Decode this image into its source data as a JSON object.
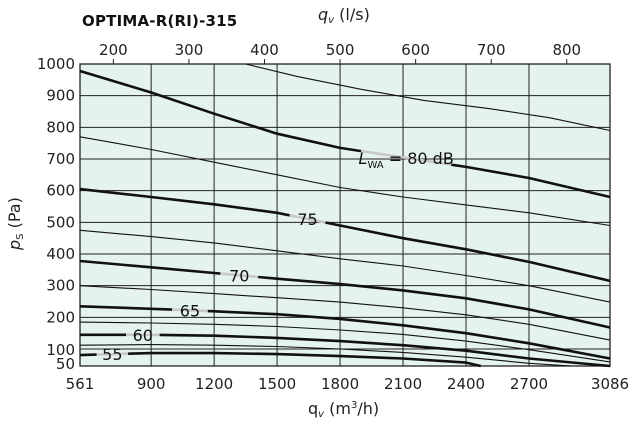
{
  "chart_data": {
    "type": "line",
    "title": "OPTIMA-R(RI)-315",
    "xlabel": "q_v (m³/h)",
    "x2label": "q_v (l/s)",
    "ylabel": "p_s (Pa)",
    "xlim": [
      561,
      3086
    ],
    "ylim": [
      50,
      1000
    ],
    "x_ticks": [
      "561",
      "900",
      "1200",
      "1500",
      "1800",
      "2100",
      "2400",
      "2700",
      "3086"
    ],
    "x_tick_values": [
      561,
      900,
      1200,
      1500,
      1800,
      2100,
      2400,
      2700,
      3086
    ],
    "x2_ticks": [
      "200",
      "300",
      "400",
      "500",
      "600",
      "700",
      "800"
    ],
    "x2_tick_values": [
      200,
      300,
      400,
      500,
      600,
      700,
      800
    ],
    "y_ticks": [
      "50",
      "100",
      "200",
      "300",
      "400",
      "500",
      "600",
      "700",
      "800",
      "900",
      "1000"
    ],
    "y_tick_values": [
      50,
      100,
      200,
      300,
      400,
      500,
      600,
      700,
      800,
      900,
      1000
    ],
    "grid": true,
    "legend": "none",
    "colors": {
      "plot_bg": "#e5f3ef",
      "grid": "#222222",
      "curve": "#111111",
      "label_gap": "#c8c8c8"
    },
    "series": [
      {
        "name": "80 dB",
        "label_prefix": "L",
        "label_sub": "WA",
        "label_eq": " = 80 dB",
        "bold": true,
        "x": [
          561,
          900,
          1200,
          1500,
          1800,
          2100,
          2400,
          2700,
          3086
        ],
        "y": [
          978,
          910,
          843,
          780,
          735,
          705,
          675,
          640,
          580
        ],
        "label_x": [
          1900,
          2330
        ]
      },
      {
        "name": "75",
        "bold": true,
        "x": [
          561,
          900,
          1200,
          1500,
          1800,
          2100,
          2400,
          2700,
          3086
        ],
        "y": [
          605,
          580,
          557,
          530,
          490,
          450,
          415,
          375,
          315
        ],
        "label_x": [
          1560,
          1730
        ]
      },
      {
        "name": "70",
        "bold": true,
        "x": [
          561,
          900,
          1200,
          1500,
          1800,
          2100,
          2400,
          2700,
          3086
        ],
        "y": [
          378,
          358,
          340,
          322,
          305,
          285,
          260,
          225,
          168
        ],
        "label_x": [
          1230,
          1410
        ]
      },
      {
        "name": "65",
        "bold": true,
        "x": [
          561,
          900,
          1200,
          1500,
          1800,
          2100,
          2400,
          2700,
          3086
        ],
        "y": [
          235,
          227,
          219,
          210,
          195,
          175,
          150,
          118,
          72
        ],
        "label_x": [
          1000,
          1170
        ]
      },
      {
        "name": "60",
        "bold": true,
        "x": [
          561,
          900,
          1200,
          1500,
          1800,
          2100,
          2400,
          2700,
          3086
        ],
        "y": [
          145,
          145,
          142,
          135,
          125,
          112,
          95,
          72,
          50
        ],
        "label_x": [
          780,
          940
        ]
      },
      {
        "name": "55",
        "bold": true,
        "x": [
          561,
          900,
          1200,
          1500,
          1800,
          2100,
          2400,
          2470
        ],
        "y": [
          82,
          88,
          88,
          85,
          79,
          72,
          60,
          50
        ],
        "label_x": [
          640,
          790
        ]
      },
      {
        "bold": false,
        "x": [
          1350,
          1600,
          1900,
          2200,
          2500,
          2800,
          3086
        ],
        "y": [
          1000,
          960,
          920,
          885,
          860,
          830,
          790
        ]
      },
      {
        "bold": false,
        "x": [
          561,
          900,
          1200,
          1500,
          1800,
          2100,
          2400,
          2700,
          3086
        ],
        "y": [
          770,
          730,
          690,
          650,
          610,
          580,
          555,
          530,
          490
        ]
      },
      {
        "bold": false,
        "x": [
          561,
          900,
          1200,
          1500,
          1800,
          2100,
          2400,
          2700,
          3086
        ],
        "y": [
          475,
          455,
          435,
          410,
          385,
          362,
          332,
          300,
          248
        ]
      },
      {
        "bold": false,
        "x": [
          561,
          900,
          1200,
          1500,
          1800,
          2100,
          2400,
          2700,
          3086
        ],
        "y": [
          300,
          288,
          275,
          262,
          248,
          230,
          208,
          178,
          128
        ]
      },
      {
        "bold": false,
        "x": [
          561,
          900,
          1200,
          1500,
          1800,
          2100,
          2400,
          2700,
          3086
        ],
        "y": [
          185,
          182,
          178,
          171,
          160,
          146,
          125,
          98,
          62
        ]
      },
      {
        "bold": false,
        "x": [
          561,
          900,
          1200,
          1500,
          1800,
          2100,
          2400,
          2700,
          2900
        ],
        "y": [
          112,
          114,
          112,
          108,
          100,
          90,
          76,
          58,
          50
        ]
      }
    ]
  }
}
